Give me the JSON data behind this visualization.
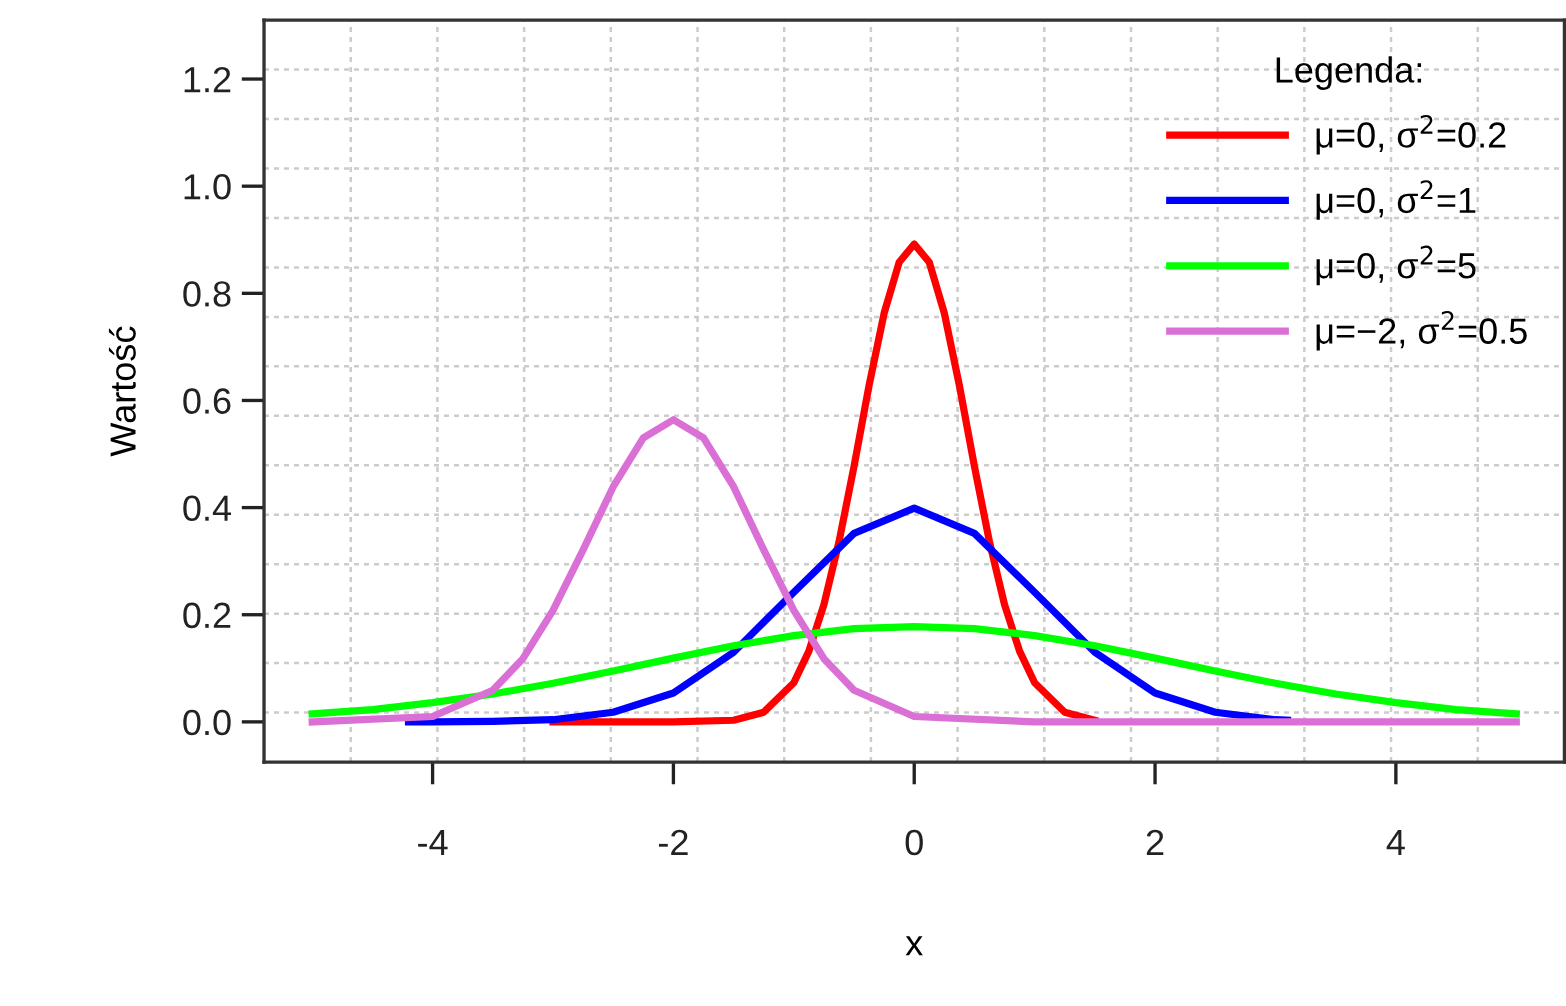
{
  "chart_data": {
    "type": "line",
    "xlabel": "x",
    "ylabel": "Wartość",
    "legend_title": "Legenda:",
    "legend": "top right",
    "grid": true,
    "line_style": "solid",
    "marker": "none",
    "xlim": [
      -5.4,
      5.4
    ],
    "ylim": [
      -0.075,
      1.31
    ],
    "xticks": [
      -4,
      -2,
      0,
      2,
      4
    ],
    "yticks": [
      {
        "value": 0,
        "label": "0.0"
      },
      {
        "value": 0.2,
        "label": "0.2"
      },
      {
        "value": 0.4,
        "label": "0.4"
      },
      {
        "value": 0.6,
        "label": "0.6"
      },
      {
        "value": 0.8,
        "label": "0.8"
      },
      {
        "value": 1.0,
        "label": "1.0"
      },
      {
        "value": 1.2,
        "label": "1.2"
      }
    ],
    "series": [
      {
        "name": "μ=0, σ$^{2}$=0.2",
        "color": "#ff0000",
        "x": [
          -3,
          -2,
          -1.5,
          -1.25,
          -1,
          -0.875,
          -0.75,
          -0.625,
          -0.5,
          -0.375,
          -0.25,
          -0.125,
          0,
          0.125,
          0.25,
          0.375,
          0.5,
          0.625,
          0.75,
          0.875,
          1,
          1.25,
          1.5
        ],
        "values": [
          0,
          0,
          0.003,
          0.018,
          0.073,
          0.132,
          0.219,
          0.336,
          0.477,
          0.628,
          0.763,
          0.858,
          0.892,
          0.858,
          0.763,
          0.628,
          0.477,
          0.336,
          0.219,
          0.132,
          0.073,
          0.018,
          0.003
        ]
      },
      {
        "name": "μ=0, σ$^{2}$=1",
        "color": "#0000ff",
        "x": [
          -4.2,
          -4,
          -3.5,
          -3,
          -2.5,
          -2,
          -1.5,
          -1,
          -0.5,
          0,
          0.5,
          1,
          1.5,
          2,
          2.5,
          3,
          3.1
        ],
        "values": [
          0,
          0,
          0.001,
          0.004,
          0.018,
          0.054,
          0.13,
          0.242,
          0.352,
          0.399,
          0.352,
          0.242,
          0.13,
          0.054,
          0.018,
          0.004,
          0.003
        ]
      },
      {
        "name": "μ=0, σ$^{2}$=5",
        "color": "#00ff00",
        "x": [
          -5,
          -4.5,
          -4,
          -3.5,
          -3,
          -2.5,
          -2,
          -1.5,
          -1,
          -0.5,
          0,
          0.5,
          1,
          1.5,
          2,
          2.5,
          3,
          3.5,
          4,
          4.5,
          5
        ],
        "values": [
          0.015,
          0.023,
          0.036,
          0.052,
          0.072,
          0.095,
          0.119,
          0.142,
          0.161,
          0.174,
          0.178,
          0.174,
          0.161,
          0.142,
          0.119,
          0.095,
          0.072,
          0.052,
          0.036,
          0.023,
          0.015
        ]
      },
      {
        "name": "μ=−2, σ$^{2}$=0.5",
        "color": "#da70d6",
        "x": [
          -5,
          -4,
          -3.5,
          -3.25,
          -3,
          -2.75,
          -2.5,
          -2.25,
          -2,
          -1.75,
          -1.5,
          -1.25,
          -1,
          -0.75,
          -0.5,
          0,
          1,
          5
        ],
        "values": [
          0,
          0.01,
          0.059,
          0.118,
          0.208,
          0.321,
          0.439,
          0.53,
          0.564,
          0.53,
          0.439,
          0.321,
          0.208,
          0.118,
          0.059,
          0.01,
          0,
          0
        ]
      }
    ]
  }
}
